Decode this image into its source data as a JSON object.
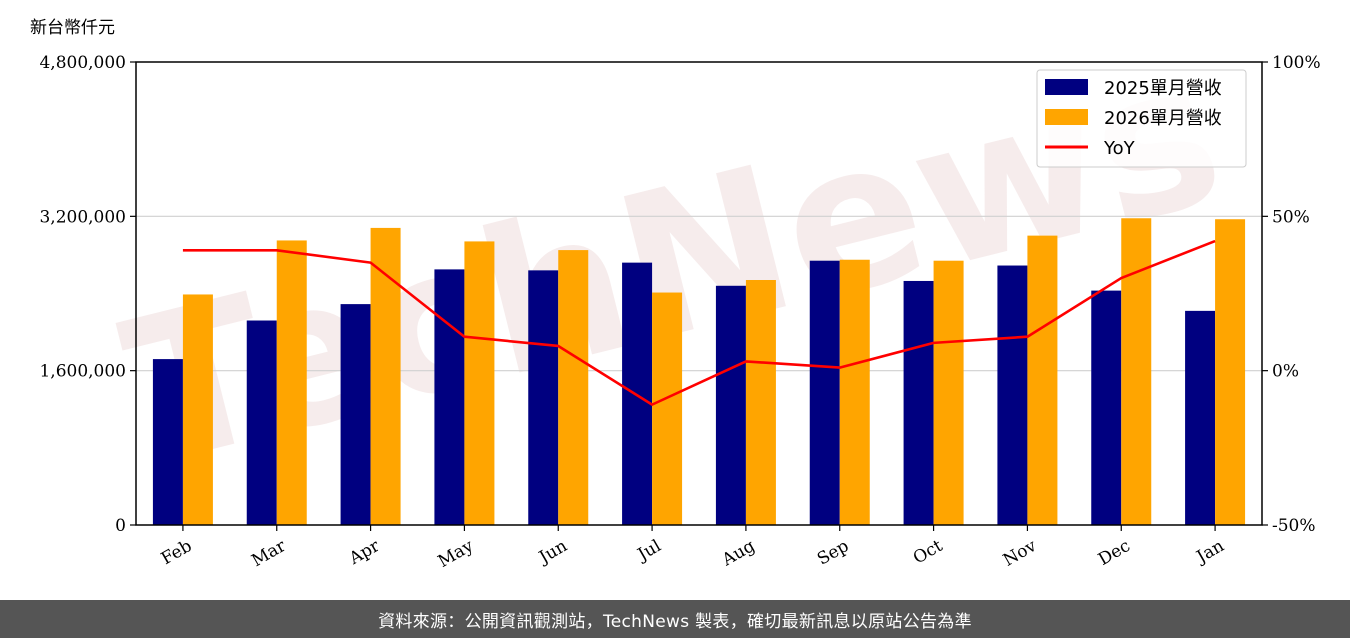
{
  "chart_data": {
    "type": "bar",
    "title": "",
    "ylabel": "新台幣仟元",
    "categories": [
      "Feb",
      "Mar",
      "Apr",
      "May",
      "Jun",
      "Jul",
      "Aug",
      "Sep",
      "Oct",
      "Nov",
      "Dec",
      "Jan"
    ],
    "series": [
      {
        "name": "2025單月營收",
        "type": "bar",
        "axis": "left",
        "color": "#000080",
        "values": [
          1720000,
          2120000,
          2290000,
          2650000,
          2640000,
          2720000,
          2480000,
          2740000,
          2530000,
          2690000,
          2430000,
          2220000
        ]
      },
      {
        "name": "2026單月營收",
        "type": "bar",
        "axis": "left",
        "color": "#ffa500",
        "values": [
          2390000,
          2950000,
          3080000,
          2940000,
          2850000,
          2410000,
          2540000,
          2750000,
          2740000,
          3000000,
          3180000,
          3170000
        ]
      },
      {
        "name": "YoY",
        "type": "line",
        "axis": "right",
        "color": "#ff0000",
        "values": [
          39,
          39,
          35,
          11,
          8,
          -11,
          3,
          1,
          9,
          11,
          30,
          42
        ]
      }
    ],
    "ylim": [
      0,
      4800000
    ],
    "y_ticks": [
      "0",
      "1,600,000",
      "3,200,000",
      "4,800,000"
    ],
    "y2lim": [
      -50,
      100
    ],
    "y2_ticks": [
      "-50%",
      "0%",
      "50%",
      "100%"
    ],
    "grid": "horizontal",
    "legend_position": "top-right"
  },
  "watermark": "TechNews",
  "footer": "資料來源：公開資訊觀測站，TechNews 製表，確切最新訊息以原站公告為準"
}
